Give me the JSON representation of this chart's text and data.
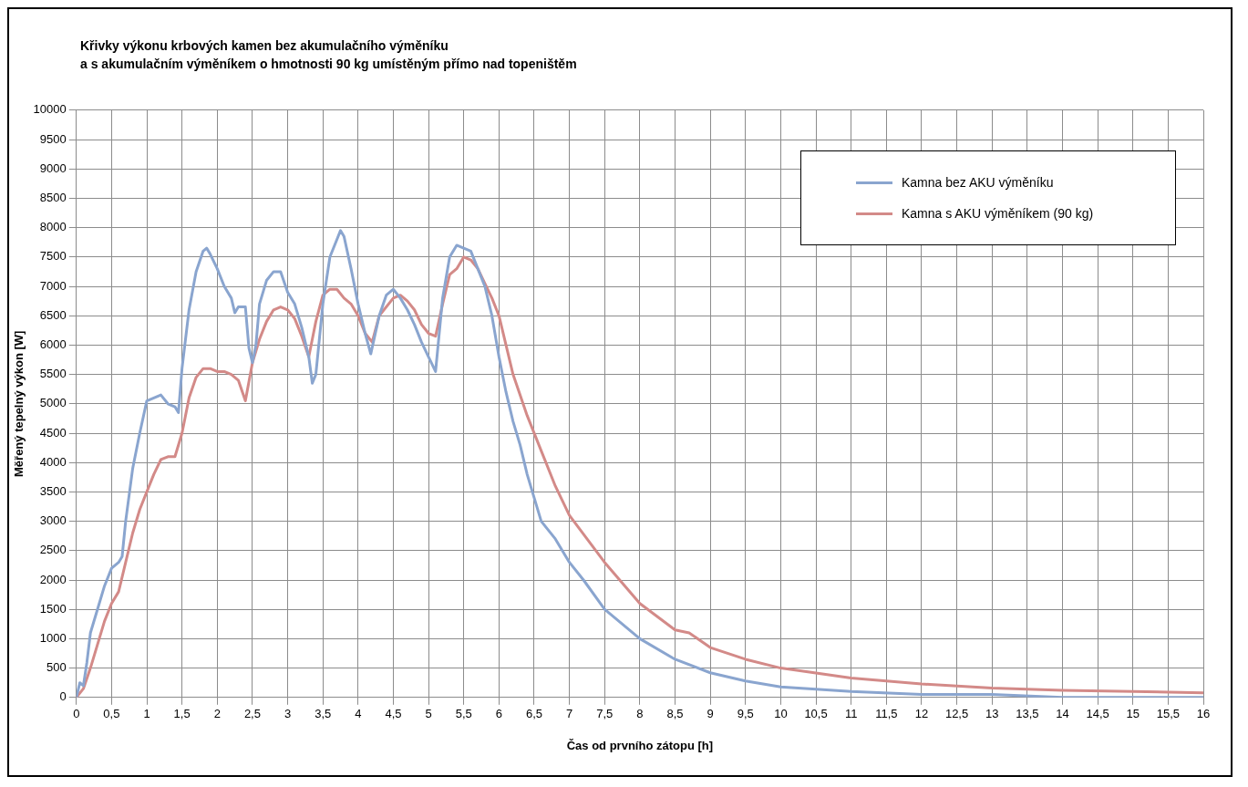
{
  "chart_data": {
    "type": "line",
    "title": "Křivky výkonu krbových kamen bez akumulačního výměníku\na s akumulačním výměníkem o hmotnosti 90 kg umístěným přímo nad topeništěm",
    "xlabel": "Čas od prvního zátopu [h]",
    "ylabel": "Měřený tepelný výkon [W]",
    "xlim": [
      0,
      16
    ],
    "xticks": [
      0,
      {
        "value": 0.5,
        "label": "0,5"
      },
      1,
      {
        "value": 1.5,
        "label": "1,5"
      },
      2,
      {
        "value": 2.5,
        "label": "2,5"
      },
      3,
      {
        "value": 3.5,
        "label": "3,5"
      },
      4,
      {
        "value": 4.5,
        "label": "4,5"
      },
      5,
      {
        "value": 5.5,
        "label": "5,5"
      },
      6,
      {
        "value": 6.5,
        "label": "6,5"
      },
      7,
      {
        "value": 7.5,
        "label": "7,5"
      },
      8,
      {
        "value": 8.5,
        "label": "8,5"
      },
      9,
      {
        "value": 9.5,
        "label": "9,5"
      },
      10,
      {
        "value": 10.5,
        "label": "10,5"
      },
      11,
      {
        "value": 11.5,
        "label": "11,5"
      },
      12,
      {
        "value": 12.5,
        "label": "12,5"
      },
      13,
      {
        "value": 13.5,
        "label": "13,5"
      },
      14,
      {
        "value": 14.5,
        "label": "14,5"
      },
      15,
      {
        "value": 15.5,
        "label": "15,5"
      },
      16
    ],
    "ylim": [
      0,
      10000
    ],
    "yticks": [
      0,
      500,
      1000,
      1500,
      2000,
      2500,
      3000,
      3500,
      4000,
      4500,
      5000,
      5500,
      6000,
      6500,
      7000,
      7500,
      8000,
      8500,
      9000,
      9500,
      10000
    ],
    "grid": true,
    "legend": "top right",
    "marker": "none",
    "line_style": "solid",
    "series": [
      {
        "name": "Kamna bez AKU výměníku",
        "color": "#8aa5cf",
        "x": [
          0,
          0.05,
          0.1,
          0.15,
          0.2,
          0.3,
          0.4,
          0.5,
          0.6,
          0.65,
          0.7,
          0.8,
          0.9,
          1.0,
          1.1,
          1.2,
          1.3,
          1.4,
          1.45,
          1.5,
          1.6,
          1.7,
          1.8,
          1.85,
          1.9,
          2.0,
          2.1,
          2.2,
          2.25,
          2.3,
          2.4,
          2.45,
          2.5,
          2.55,
          2.6,
          2.7,
          2.8,
          2.9,
          3.0,
          3.1,
          3.2,
          3.3,
          3.35,
          3.4,
          3.5,
          3.6,
          3.7,
          3.75,
          3.8,
          3.9,
          4.0,
          4.1,
          4.18,
          4.3,
          4.4,
          4.5,
          4.6,
          4.7,
          4.8,
          4.9,
          5.0,
          5.1,
          5.2,
          5.3,
          5.4,
          5.5,
          5.6,
          5.7,
          5.8,
          5.9,
          6.0,
          6.1,
          6.2,
          6.3,
          6.4,
          6.5,
          6.6,
          6.8,
          7.0,
          7.2,
          7.5,
          8,
          8.5,
          9,
          9.5,
          10,
          11,
          12,
          13,
          14,
          15,
          16
        ],
        "values": [
          0,
          250,
          200,
          600,
          1100,
          1500,
          1900,
          2200,
          2300,
          2400,
          3000,
          3900,
          4500,
          5050,
          5100,
          5150,
          5000,
          4950,
          4850,
          5600,
          6600,
          7250,
          7600,
          7650,
          7550,
          7300,
          7000,
          6800,
          6550,
          6650,
          6650,
          5950,
          5700,
          6000,
          6700,
          7100,
          7250,
          7250,
          6900,
          6700,
          6300,
          5800,
          5350,
          5500,
          6700,
          7500,
          7800,
          7950,
          7850,
          7300,
          6700,
          6200,
          5850,
          6500,
          6850,
          6950,
          6800,
          6600,
          6350,
          6050,
          5800,
          5550,
          6800,
          7500,
          7700,
          7650,
          7600,
          7300,
          7000,
          6500,
          5800,
          5200,
          4700,
          4300,
          3800,
          3400,
          3000,
          2700,
          2300,
          2000,
          1500,
          1000,
          650,
          420,
          280,
          180,
          100,
          50,
          50,
          0,
          0,
          0
        ]
      },
      {
        "name": "Kamna s AKU výměníkem (90 kg)",
        "color": "#d38a88",
        "x": [
          0,
          0.1,
          0.2,
          0.3,
          0.4,
          0.5,
          0.6,
          0.7,
          0.8,
          0.9,
          1.0,
          1.1,
          1.2,
          1.3,
          1.4,
          1.5,
          1.6,
          1.7,
          1.8,
          1.9,
          2.0,
          2.1,
          2.2,
          2.3,
          2.4,
          2.5,
          2.6,
          2.7,
          2.8,
          2.9,
          3.0,
          3.1,
          3.2,
          3.3,
          3.4,
          3.5,
          3.6,
          3.7,
          3.8,
          3.9,
          4.0,
          4.1,
          4.2,
          4.3,
          4.5,
          4.6,
          4.7,
          4.8,
          4.9,
          5.0,
          5.1,
          5.2,
          5.3,
          5.4,
          5.5,
          5.6,
          5.7,
          5.8,
          5.9,
          6.0,
          6.1,
          6.2,
          6.4,
          6.6,
          6.8,
          7.0,
          7.5,
          8,
          8.5,
          8.7,
          9,
          9.5,
          10,
          11,
          12,
          13,
          14,
          15,
          16
        ],
        "values": [
          0,
          150,
          500,
          900,
          1300,
          1600,
          1800,
          2300,
          2800,
          3200,
          3500,
          3800,
          4050,
          4100,
          4100,
          4500,
          5100,
          5450,
          5600,
          5600,
          5550,
          5550,
          5500,
          5400,
          5050,
          5700,
          6100,
          6400,
          6600,
          6650,
          6600,
          6450,
          6150,
          5800,
          6400,
          6850,
          6950,
          6950,
          6800,
          6700,
          6500,
          6200,
          6050,
          6500,
          6800,
          6850,
          6750,
          6600,
          6350,
          6200,
          6150,
          6700,
          7200,
          7300,
          7500,
          7450,
          7300,
          7050,
          6800,
          6500,
          6000,
          5500,
          4800,
          4200,
          3600,
          3100,
          2300,
          1600,
          1150,
          1100,
          850,
          650,
          500,
          330,
          230,
          160,
          120,
          100,
          80
        ]
      }
    ]
  }
}
